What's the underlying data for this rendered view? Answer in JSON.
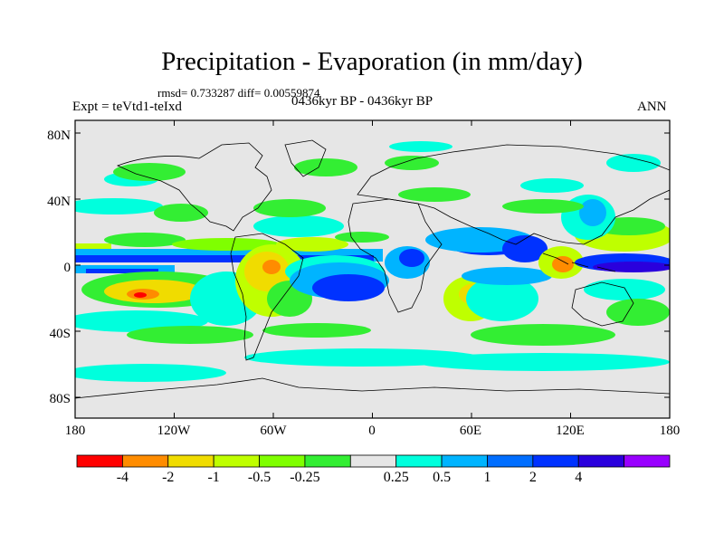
{
  "title": "Precipitation - Evaporation (in mm/day)",
  "stats": "rmsd= 0.733287 diff= 0.00559874",
  "left_label": "Expt = teVtd1-teIxd",
  "center_label": "0436kyr BP - 0436kyr BP",
  "right_label": "ANN",
  "lat_labels": [
    "80N",
    "40N",
    "0",
    "40S",
    "80S"
  ],
  "lon_labels": [
    "180",
    "120W",
    "60W",
    "0",
    "60E",
    "120E",
    "180"
  ],
  "colorbar": {
    "colors": [
      "#ff0000",
      "#ff8c00",
      "#f0dc00",
      "#bfff00",
      "#7fff00",
      "#33ee33",
      "#e6e6e6",
      "#00ffdd",
      "#00b4ff",
      "#006eff",
      "#0032ff",
      "#2a00dd",
      "#9900ff"
    ],
    "labels": [
      "-4",
      "-2",
      "-1",
      "-0.5",
      "-0.25",
      "0.25",
      "0.5",
      "1",
      "2",
      "4"
    ]
  },
  "map": {
    "background": "#e6e6e6"
  }
}
